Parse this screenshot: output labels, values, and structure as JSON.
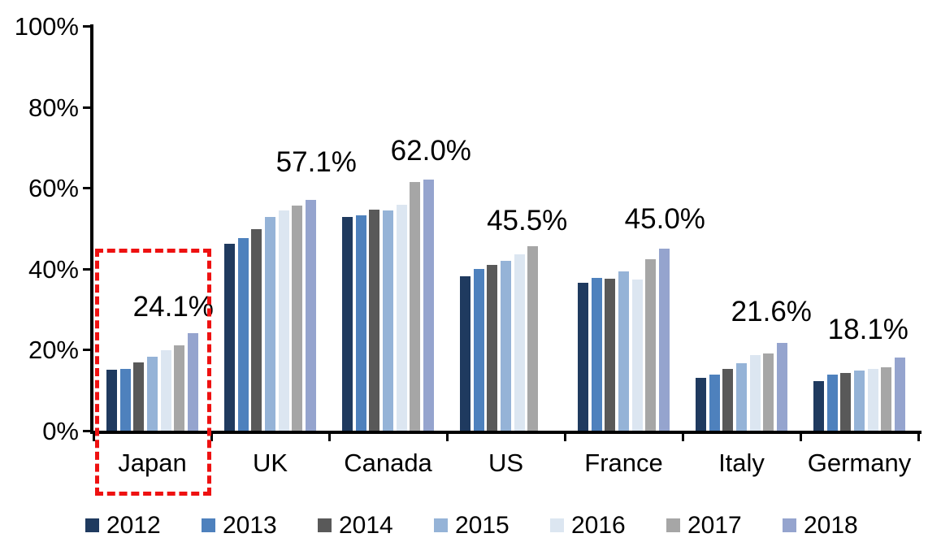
{
  "chart_data": {
    "type": "bar",
    "title": "",
    "categories": [
      "Japan",
      "UK",
      "Canada",
      "US",
      "France",
      "Italy",
      "Germany"
    ],
    "series": [
      {
        "name": "2012",
        "color": "#1F3A5F",
        "values": [
          15.0,
          46.2,
          52.8,
          38.1,
          36.5,
          13.1,
          12.3
        ]
      },
      {
        "name": "2013",
        "color": "#4E81BD",
        "values": [
          15.2,
          47.5,
          53.3,
          39.9,
          37.7,
          13.9,
          13.9
        ]
      },
      {
        "name": "2014",
        "color": "#595959",
        "values": [
          16.8,
          49.7,
          54.7,
          41.0,
          37.6,
          15.2,
          14.3
        ]
      },
      {
        "name": "2015",
        "color": "#95B3D7",
        "values": [
          18.2,
          52.9,
          54.5,
          41.9,
          39.4,
          16.7,
          14.9
        ]
      },
      {
        "name": "2016",
        "color": "#DCE6F1",
        "values": [
          19.9,
          54.5,
          55.9,
          43.5,
          37.4,
          18.7,
          15.3
        ]
      },
      {
        "name": "2017",
        "color": "#A6A6A6",
        "values": [
          21.1,
          55.7,
          61.4,
          45.5,
          42.3,
          19.0,
          15.7
        ]
      },
      {
        "name": "2018",
        "color": "#95A4CE",
        "values": [
          24.1,
          57.1,
          62.0,
          null,
          45.0,
          21.6,
          18.1
        ]
      }
    ],
    "data_labels": [
      "24.1%",
      "57.1%",
      "62.0%",
      "45.5%",
      "45.0%",
      "21.6%",
      "18.1%"
    ],
    "y_axis": {
      "min": 0,
      "max": 100,
      "tick_step": 20,
      "tick_labels": [
        "100%",
        "80%",
        "60%",
        "40%",
        "20%",
        "0%"
      ],
      "grid": false
    },
    "legend": {
      "position": "bottom",
      "entries": [
        "2012",
        "2013",
        "2014",
        "2015",
        "2016",
        "2017",
        "2018"
      ]
    },
    "highlight": {
      "category": "Japan",
      "style": "dashed-box",
      "color": "#EE1111"
    },
    "axis_color": "#000000",
    "background_color": "#FFFFFF"
  }
}
